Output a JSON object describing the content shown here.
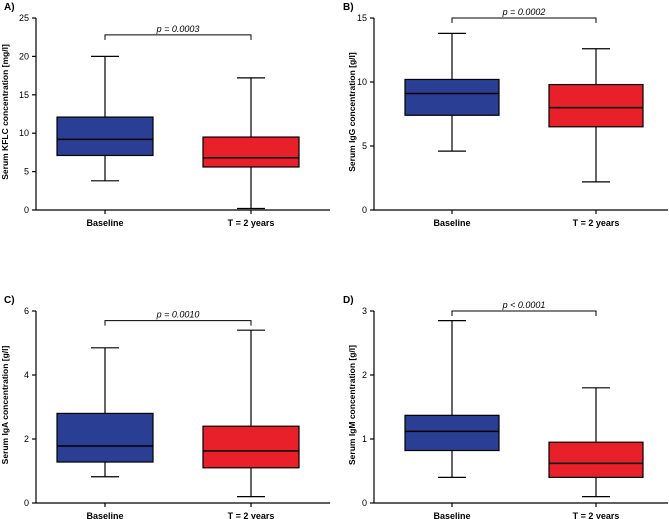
{
  "chart_data": [
    {
      "panel": "A)",
      "type": "boxplot",
      "ylabel": "Serum KFLC concentration [mg/l]",
      "ylim": [
        0,
        25
      ],
      "yticks": [
        0,
        5,
        10,
        15,
        20,
        25
      ],
      "categories": [
        "Baseline",
        "T = 2 years"
      ],
      "boxes": [
        {
          "min": 3.8,
          "q1": 7.1,
          "median": 9.2,
          "q3": 12.1,
          "max": 20.0,
          "color": "#2a3f94"
        },
        {
          "min": 0.2,
          "q1": 5.6,
          "median": 6.8,
          "q3": 9.5,
          "max": 17.2,
          "color": "#e8202a"
        }
      ],
      "bracket_y": 22.8,
      "p_value": "p = 0.0003"
    },
    {
      "panel": "B)",
      "type": "boxplot",
      "ylabel": "Serum IgG concentration [g/l]",
      "ylim": [
        0,
        15
      ],
      "yticks": [
        0,
        5,
        10,
        15
      ],
      "categories": [
        "Baseline",
        "T = 2 years"
      ],
      "boxes": [
        {
          "min": 4.6,
          "q1": 7.4,
          "median": 9.1,
          "q3": 10.2,
          "max": 13.8,
          "color": "#2a3f94"
        },
        {
          "min": 2.2,
          "q1": 6.5,
          "median": 8.0,
          "q3": 9.8,
          "max": 12.6,
          "color": "#e8202a"
        }
      ],
      "bracket_y": 15.0,
      "p_value": "p = 0.0002"
    },
    {
      "panel": "C)",
      "type": "boxplot",
      "ylabel": "Serum IgA concentration [g/l]",
      "ylim": [
        0,
        6
      ],
      "yticks": [
        0,
        2,
        4,
        6
      ],
      "categories": [
        "Baseline",
        "T = 2 years"
      ],
      "boxes": [
        {
          "min": 0.82,
          "q1": 1.28,
          "median": 1.78,
          "q3": 2.8,
          "max": 4.85,
          "color": "#2a3f94"
        },
        {
          "min": 0.2,
          "q1": 1.1,
          "median": 1.63,
          "q3": 2.4,
          "max": 5.4,
          "color": "#e8202a"
        }
      ],
      "bracket_y": 5.7,
      "p_value": "p = 0.0010"
    },
    {
      "panel": "D)",
      "type": "boxplot",
      "ylabel": "Serum IgM concentration [g/l]",
      "ylim": [
        0,
        3
      ],
      "yticks": [
        0,
        1,
        2,
        3
      ],
      "categories": [
        "Baseline",
        "T = 2 years"
      ],
      "boxes": [
        {
          "min": 0.4,
          "q1": 0.82,
          "median": 1.12,
          "q3": 1.37,
          "max": 2.85,
          "color": "#2a3f94"
        },
        {
          "min": 0.1,
          "q1": 0.4,
          "median": 0.62,
          "q3": 0.95,
          "max": 1.8,
          "color": "#e8202a"
        }
      ],
      "bracket_y": 3.0,
      "p_value": "p < 0.0001"
    }
  ]
}
